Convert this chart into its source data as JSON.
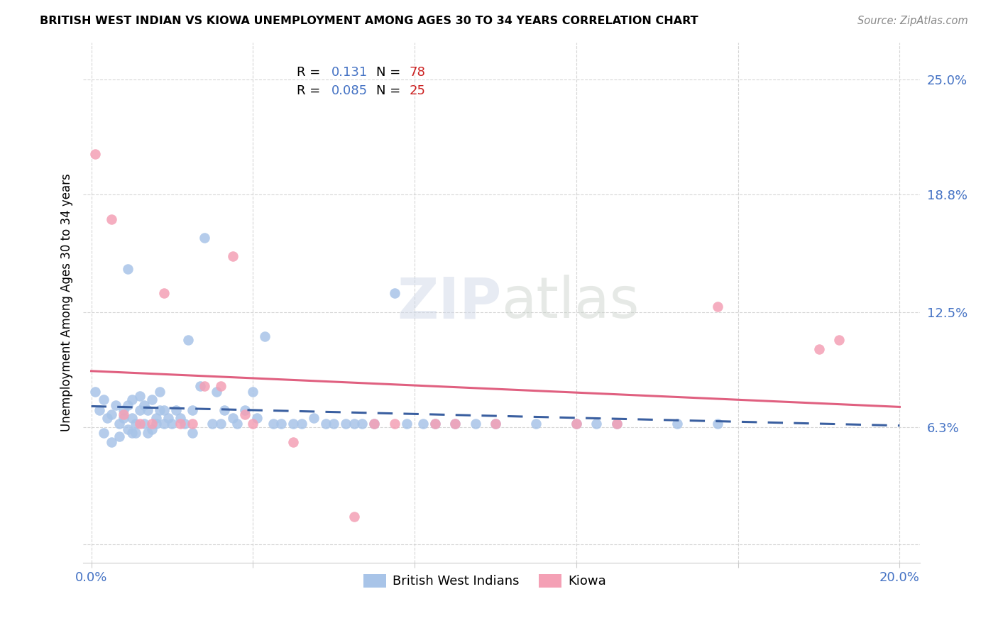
{
  "title": "BRITISH WEST INDIAN VS KIOWA UNEMPLOYMENT AMONG AGES 30 TO 34 YEARS CORRELATION CHART",
  "source": "Source: ZipAtlas.com",
  "ylabel": "Unemployment Among Ages 30 to 34 years",
  "xlim": [
    -0.002,
    0.205
  ],
  "ylim": [
    -0.01,
    0.27
  ],
  "xticks": [
    0.0,
    0.04,
    0.08,
    0.12,
    0.16,
    0.2
  ],
  "xticklabels": [
    "0.0%",
    "",
    "",
    "",
    "",
    "20.0%"
  ],
  "ytick_positions": [
    0.0,
    0.063,
    0.125,
    0.188,
    0.25
  ],
  "ytick_labels": [
    "",
    "6.3%",
    "12.5%",
    "18.8%",
    "25.0%"
  ],
  "bwi_R": 0.131,
  "bwi_N": 78,
  "kiowa_R": 0.085,
  "kiowa_N": 25,
  "bwi_color": "#a8c4e8",
  "kiowa_color": "#f4a0b5",
  "bwi_line_color": "#3a5fa0",
  "kiowa_line_color": "#e06080",
  "bwi_x": [
    0.001,
    0.002,
    0.003,
    0.003,
    0.004,
    0.005,
    0.005,
    0.006,
    0.007,
    0.007,
    0.008,
    0.008,
    0.009,
    0.009,
    0.009,
    0.01,
    0.01,
    0.01,
    0.011,
    0.011,
    0.012,
    0.012,
    0.013,
    0.013,
    0.014,
    0.014,
    0.015,
    0.015,
    0.016,
    0.016,
    0.017,
    0.017,
    0.018,
    0.018,
    0.019,
    0.02,
    0.021,
    0.022,
    0.023,
    0.024,
    0.025,
    0.025,
    0.027,
    0.028,
    0.03,
    0.031,
    0.032,
    0.033,
    0.035,
    0.036,
    0.038,
    0.04,
    0.041,
    0.043,
    0.045,
    0.047,
    0.05,
    0.052,
    0.055,
    0.058,
    0.06,
    0.063,
    0.065,
    0.067,
    0.07,
    0.075,
    0.078,
    0.082,
    0.085,
    0.09,
    0.095,
    0.1,
    0.11,
    0.12,
    0.125,
    0.13,
    0.145,
    0.155
  ],
  "bwi_y": [
    0.082,
    0.072,
    0.06,
    0.078,
    0.068,
    0.055,
    0.07,
    0.075,
    0.058,
    0.065,
    0.072,
    0.068,
    0.075,
    0.062,
    0.148,
    0.06,
    0.068,
    0.078,
    0.06,
    0.065,
    0.072,
    0.08,
    0.065,
    0.075,
    0.06,
    0.072,
    0.062,
    0.078,
    0.065,
    0.068,
    0.072,
    0.082,
    0.065,
    0.072,
    0.068,
    0.065,
    0.072,
    0.068,
    0.065,
    0.11,
    0.06,
    0.072,
    0.085,
    0.165,
    0.065,
    0.082,
    0.065,
    0.072,
    0.068,
    0.065,
    0.072,
    0.082,
    0.068,
    0.112,
    0.065,
    0.065,
    0.065,
    0.065,
    0.068,
    0.065,
    0.065,
    0.065,
    0.065,
    0.065,
    0.065,
    0.135,
    0.065,
    0.065,
    0.065,
    0.065,
    0.065,
    0.065,
    0.065,
    0.065,
    0.065,
    0.065,
    0.065,
    0.065
  ],
  "kiowa_x": [
    0.001,
    0.005,
    0.008,
    0.012,
    0.015,
    0.018,
    0.022,
    0.025,
    0.028,
    0.032,
    0.035,
    0.038,
    0.04,
    0.05,
    0.065,
    0.07,
    0.075,
    0.085,
    0.09,
    0.1,
    0.12,
    0.13,
    0.155,
    0.18,
    0.185
  ],
  "kiowa_y": [
    0.21,
    0.175,
    0.07,
    0.065,
    0.065,
    0.135,
    0.065,
    0.065,
    0.085,
    0.085,
    0.155,
    0.07,
    0.065,
    0.055,
    0.015,
    0.065,
    0.065,
    0.065,
    0.065,
    0.065,
    0.065,
    0.065,
    0.128,
    0.105,
    0.11
  ]
}
